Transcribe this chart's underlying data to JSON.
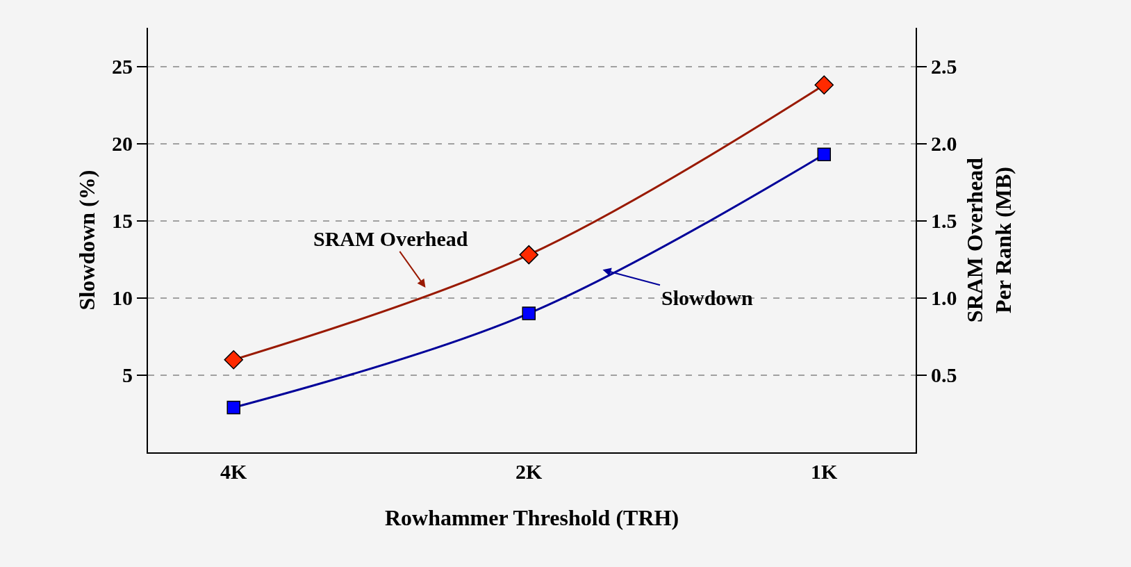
{
  "chart_data": {
    "type": "line",
    "xlabel": "Rowhammer Threshold (TRH)",
    "ylabel": "Slowdown (%)",
    "y2label": "SRAM Overhead\nPer Rank (MB)",
    "categories": [
      "4K",
      "2K",
      "1K"
    ],
    "series": [
      {
        "name": "Slowdown",
        "color": "#0000ff",
        "marker": "square",
        "values": [
          2.9,
          9.0,
          19.3
        ]
      },
      {
        "name": "SRAM Overhead",
        "color": "#ff2a00",
        "marker": "diamond",
        "axis": "y2",
        "values": [
          0.6,
          1.28,
          2.38
        ]
      }
    ],
    "ylim": [
      0,
      27.5
    ],
    "yticks": [
      5,
      10,
      15,
      20,
      25
    ],
    "y2lim": [
      0,
      2.75
    ],
    "y2ticks": [
      {
        "value": 0.5,
        "label": "0.5"
      },
      {
        "value": 1,
        "label": "1.0"
      },
      {
        "value": 1.5,
        "label": "1.5"
      },
      {
        "value": 2,
        "label": "2.0"
      },
      {
        "value": 2.5,
        "label": "2.5"
      }
    ],
    "grid": "y",
    "legend": false
  }
}
